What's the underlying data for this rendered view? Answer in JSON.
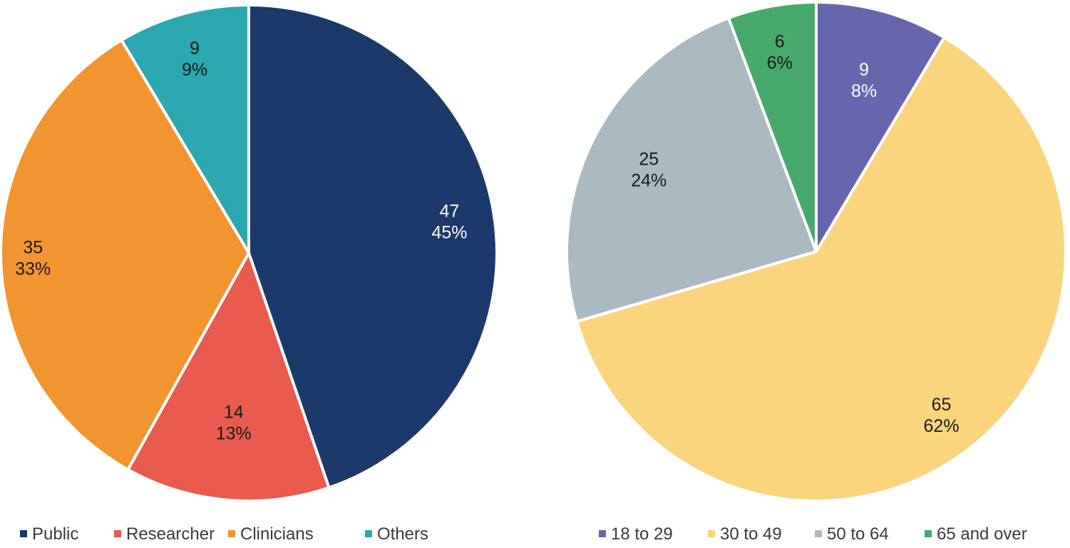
{
  "chart_data": [
    {
      "type": "pie",
      "title": "",
      "legend_position": "bottom",
      "slices": [
        {
          "label": "Public",
          "value": 47,
          "percent": "45%",
          "color": "#1b3a6b",
          "label_color": "#ffffff"
        },
        {
          "label": "Researcher",
          "value": 14,
          "percent": "13%",
          "color": "#e85b4e",
          "label_color": "#1a1a1a"
        },
        {
          "label": "Clinicians",
          "value": 35,
          "percent": "33%",
          "color": "#f29530",
          "label_color": "#1a1a1a"
        },
        {
          "label": "Others",
          "value": 9,
          "percent": "9%",
          "color": "#2ba8b0",
          "label_color": "#1a1a1a"
        }
      ]
    },
    {
      "type": "pie",
      "title": "",
      "legend_position": "bottom",
      "slices": [
        {
          "label": "18 to 29",
          "value": 9,
          "percent": "8%",
          "color": "#6766ad",
          "label_color": "#ffffff"
        },
        {
          "label": "30 to 49",
          "value": 65,
          "percent": "62%",
          "color": "#fbd47e",
          "label_color": "#1a1a1a"
        },
        {
          "label": "50 to 64",
          "value": 25,
          "percent": "24%",
          "color": "#abbac1",
          "label_color": "#1a1a1a"
        },
        {
          "label": "65 and over",
          "value": 6,
          "percent": "6%",
          "color": "#47a96b",
          "label_color": "#1a1a1a"
        }
      ]
    }
  ]
}
